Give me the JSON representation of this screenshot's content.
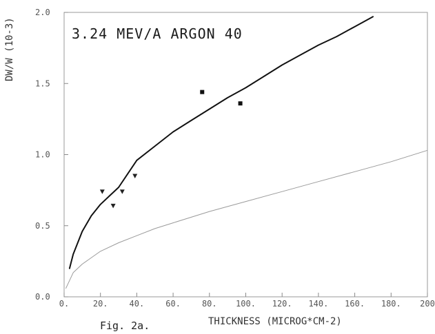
{
  "chart_data": {
    "type": "line",
    "title": "3.24 MEV/A    ARGON 40",
    "xlabel": "THICKNESS (MICROG*CM-2)",
    "ylabel": "DW/W (10-3)",
    "caption": "Fig. 2a.",
    "xlim": [
      0,
      200
    ],
    "ylim": [
      0,
      2.0
    ],
    "x_ticks": [
      0,
      20,
      40,
      60,
      80,
      100,
      120,
      140,
      160,
      180,
      200
    ],
    "x_tick_labels": [
      "0.",
      "20.",
      "40.",
      "60.",
      "80.",
      "100.",
      "120.",
      "140.",
      "160.",
      "180.",
      "200"
    ],
    "y_ticks": [
      0,
      0.5,
      1.0,
      1.5,
      2.0
    ],
    "y_tick_labels": [
      "0.0",
      "0.5",
      "1.0",
      "1.5",
      "2.0"
    ],
    "grid": false,
    "series": [
      {
        "kind": "line",
        "color": "#111111",
        "stroke": 2,
        "x": [
          3,
          5,
          10,
          15,
          20,
          25,
          30,
          40,
          50,
          60,
          70,
          80,
          90,
          100,
          110,
          120,
          130,
          140,
          150,
          160,
          170
        ],
        "y": [
          0.2,
          0.3,
          0.46,
          0.57,
          0.65,
          0.71,
          0.77,
          0.96,
          1.06,
          1.16,
          1.24,
          1.32,
          1.4,
          1.47,
          1.55,
          1.63,
          1.7,
          1.77,
          1.83,
          1.9,
          1.97
        ]
      },
      {
        "kind": "line",
        "color": "#9a9a9a",
        "stroke": 1,
        "x": [
          1,
          5,
          10,
          20,
          30,
          40,
          50,
          60,
          80,
          100,
          120,
          140,
          160,
          180,
          200
        ],
        "y": [
          0.06,
          0.17,
          0.23,
          0.32,
          0.38,
          0.43,
          0.48,
          0.52,
          0.6,
          0.67,
          0.74,
          0.81,
          0.88,
          0.95,
          1.03
        ]
      },
      {
        "kind": "points",
        "marker": "triangle-down",
        "color": "#222222",
        "x": [
          21,
          27,
          32,
          39
        ],
        "y": [
          0.74,
          0.64,
          0.74,
          0.85
        ]
      },
      {
        "kind": "points",
        "marker": "star",
        "color": "#111111",
        "x": [
          76,
          97
        ],
        "y": [
          1.44,
          1.36
        ]
      }
    ]
  }
}
